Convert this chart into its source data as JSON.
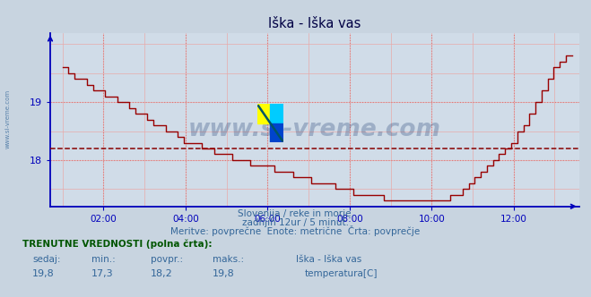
{
  "title": "Iška - Iška vas",
  "bg_color": "#c8d4e0",
  "plot_bg_color": "#d0dce8",
  "line_color": "#990000",
  "avg_line_color": "#880000",
  "axis_color": "#0000bb",
  "tick_color": "#336699",
  "text_color": "#336699",
  "title_color": "#000044",
  "watermark": "www.si-vreme.com",
  "side_label": "www.si-vreme.com",
  "yticks": [
    18.0,
    19.0
  ],
  "ylim": [
    17.2,
    20.2
  ],
  "xlim": [
    0.7,
    13.6
  ],
  "x_ticks": [
    2,
    4,
    6,
    8,
    10,
    12
  ],
  "x_tick_labels": [
    "02:00",
    "04:00",
    "06:00",
    "08:00",
    "10:00",
    "12:00"
  ],
  "avg_value": 18.2,
  "subtitle1": "Slovenija / reke in morje.",
  "subtitle2": "zadnjih 12ur / 5 minut.",
  "subtitle3": "Meritve: povprečne  Enote: metrične  Črta: povprečje",
  "footer_bold": "TRENUTNE VREDNOSTI (polna črta):",
  "footer_cols": [
    "sedaj:",
    "min.:",
    "povpr.:",
    "maks.:"
  ],
  "footer_vals": [
    "19,8",
    "17,3",
    "18,2",
    "19,8"
  ],
  "footer_station": "Iška - Iška vas",
  "footer_series": "temperatura[C]",
  "temp_data": [
    19.6,
    19.5,
    19.4,
    19.4,
    19.3,
    19.2,
    19.2,
    19.1,
    19.1,
    19.0,
    19.0,
    18.9,
    18.8,
    18.8,
    18.7,
    18.6,
    18.6,
    18.5,
    18.5,
    18.4,
    18.3,
    18.3,
    18.3,
    18.2,
    18.2,
    18.1,
    18.1,
    18.1,
    18.0,
    18.0,
    18.0,
    17.9,
    17.9,
    17.9,
    17.9,
    17.8,
    17.8,
    17.8,
    17.7,
    17.7,
    17.7,
    17.6,
    17.6,
    17.6,
    17.6,
    17.5,
    17.5,
    17.5,
    17.4,
    17.4,
    17.4,
    17.4,
    17.4,
    17.3,
    17.3,
    17.3,
    17.3,
    17.3,
    17.3,
    17.3,
    17.3,
    17.3,
    17.3,
    17.3,
    17.4,
    17.4,
    17.5,
    17.6,
    17.7,
    17.8,
    17.9,
    18.0,
    18.1,
    18.2,
    18.3,
    18.5,
    18.6,
    18.8,
    19.0,
    19.2,
    19.4,
    19.6,
    19.7,
    19.8,
    19.8
  ]
}
